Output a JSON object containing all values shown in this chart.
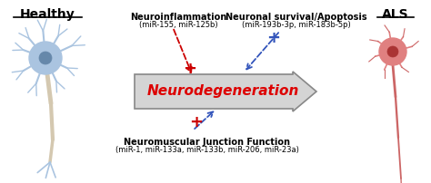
{
  "title_healthy": "Healthy",
  "title_als": "ALS",
  "arrow_label": "Neurodegeneration",
  "box1_title": "Neuroinflammation",
  "box1_sub": "(miR-155, miR-125b)",
  "box2_title": "Neuronal survival/Apoptosis",
  "box2_sub": "(miR-193b-3p, miR-183b-5p)",
  "box3_title": "Neuromuscular Junction Function",
  "box3_sub": "(miR-1, miR-133a, miR-133b, miR-206, miR-23a)",
  "bg_color": "#ffffff",
  "arrow_body_color": "#d4d4d4",
  "arrow_border_color": "#888888",
  "arrow_text_color": "#dd0000",
  "title_color": "#000000",
  "box_title_color": "#000000",
  "red_plus_color": "#cc0000",
  "blue_color": "#3355bb",
  "red_color": "#cc0000",
  "neuron_blue_body": "#aac4e0",
  "neuron_blue_border": "#7799bb",
  "neuron_blue_nucleus": "#6688aa",
  "neuron_blue_axon": "#d4c8b0",
  "neuron_red_body": "#e08080",
  "neuron_red_border": "#cc4444",
  "neuron_red_nucleus": "#aa3333",
  "neuron_red_axon": "#cc6666"
}
